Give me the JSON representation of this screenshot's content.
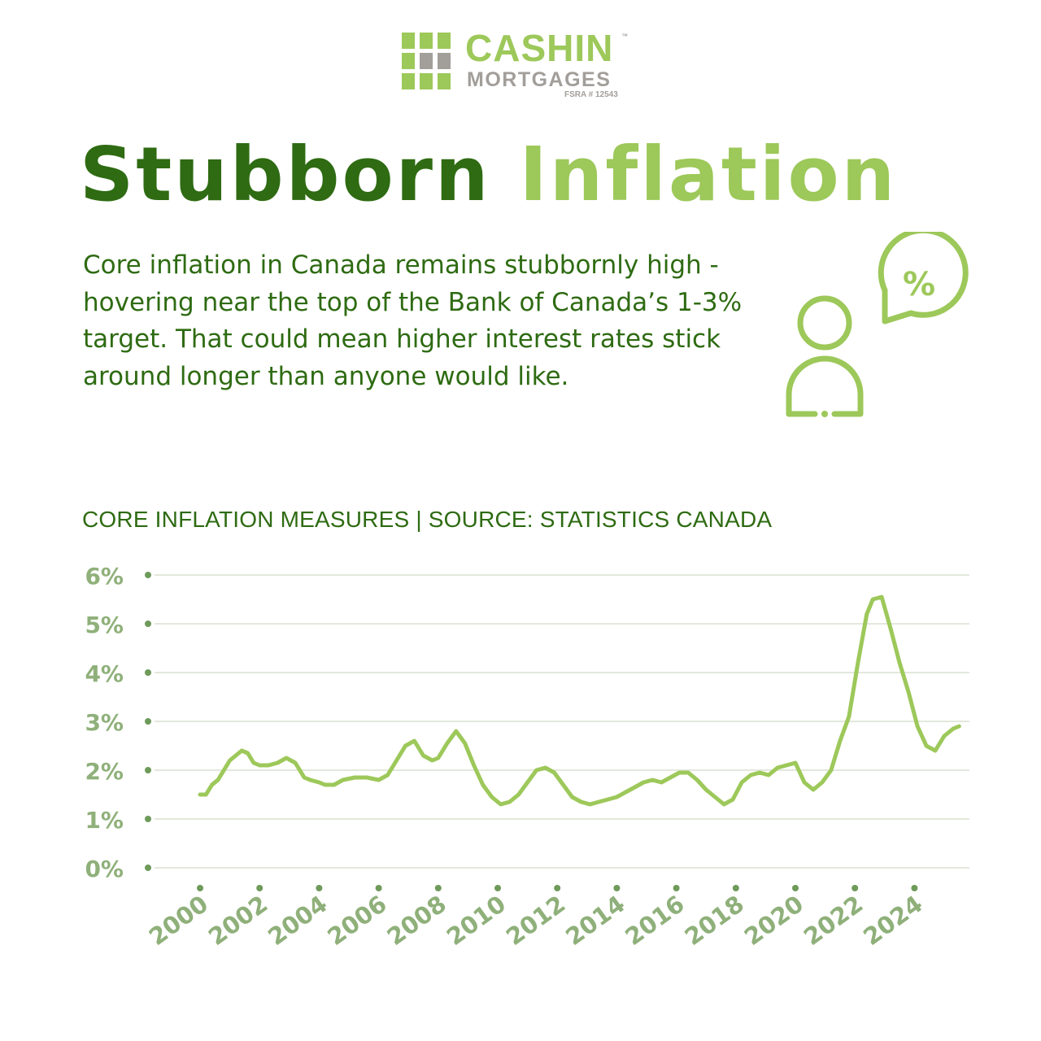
{
  "brand": {
    "name": "CASHIN",
    "trademark": "™",
    "sub": "MORTGAGES",
    "license": "FSRA # 12543"
  },
  "headline": {
    "word1": "Stubborn",
    "word2": "Inflation"
  },
  "description": "Core inflation in Canada remains stubbornly high - hovering near the top of the Bank of Canada’s 1-3% target. That could mean higher interest rates stick around longer than anyone would like.",
  "icons": {
    "illustration": "person-speech-bubble-percent-icon",
    "logo": "grid-squares-icon",
    "percent_symbol": "%"
  },
  "colors": {
    "dark_green": "#2e6b12",
    "light_green": "#9dc85a",
    "axis_green": "#8fb07a",
    "dot_green": "#6e9a5a",
    "grid": "#e3e8dc"
  },
  "chart_data": {
    "type": "line",
    "title": "CORE INFLATION MEASURES | SOURCE: STATISTICS CANADA",
    "xlabel": "",
    "ylabel": "",
    "ylim": [
      0,
      6
    ],
    "xlim": [
      2000,
      2025.7
    ],
    "grid": true,
    "y_ticks": [
      "0%",
      "1%",
      "2%",
      "3%",
      "4%",
      "5%",
      "6%"
    ],
    "x_ticks": [
      "2000",
      "2002",
      "2004",
      "2006",
      "2008",
      "2010",
      "2012",
      "2014",
      "2016",
      "2018",
      "2020",
      "2022",
      "2024"
    ],
    "series": [
      {
        "x": [
          2000,
          2000.2,
          2000.4,
          2000.6,
          2000.8,
          2001,
          2001.2,
          2001.4,
          2001.6,
          2001.8,
          2002,
          2002.3,
          2002.6,
          2002.9,
          2003.2,
          2003.5,
          2003.7,
          2004,
          2004.2,
          2004.5,
          2004.8,
          2005.2,
          2005.6,
          2006,
          2006.3,
          2006.6,
          2006.9,
          2007.2,
          2007.5,
          2007.8,
          2008,
          2008.3,
          2008.6,
          2008.9,
          2009.2,
          2009.5,
          2009.8,
          2010.1,
          2010.4,
          2010.7,
          2011,
          2011.3,
          2011.6,
          2011.9,
          2012.2,
          2012.5,
          2012.8,
          2013.1,
          2013.4,
          2013.7,
          2014,
          2014.3,
          2014.6,
          2014.9,
          2015.2,
          2015.5,
          2015.8,
          2016.1,
          2016.4,
          2016.7,
          2017,
          2017.3,
          2017.6,
          2017.9,
          2018.2,
          2018.5,
          2018.8,
          2019.1,
          2019.4,
          2019.7,
          2020,
          2020.3,
          2020.6,
          2020.9,
          2021.2,
          2021.5,
          2021.8,
          2022.1,
          2022.4,
          2022.6,
          2022.9,
          2023.2,
          2023.5,
          2023.8,
          2024.1,
          2024.4,
          2024.7,
          2025,
          2025.3,
          2025.5
        ],
        "values": [
          1.5,
          1.5,
          1.7,
          1.8,
          2.0,
          2.2,
          2.3,
          2.4,
          2.35,
          2.15,
          2.1,
          2.1,
          2.15,
          2.25,
          2.15,
          1.85,
          1.8,
          1.75,
          1.7,
          1.7,
          1.8,
          1.85,
          1.85,
          1.8,
          1.9,
          2.2,
          2.5,
          2.6,
          2.3,
          2.2,
          2.25,
          2.55,
          2.8,
          2.55,
          2.1,
          1.7,
          1.45,
          1.3,
          1.35,
          1.5,
          1.75,
          2.0,
          2.05,
          1.95,
          1.7,
          1.45,
          1.35,
          1.3,
          1.35,
          1.4,
          1.45,
          1.55,
          1.65,
          1.75,
          1.8,
          1.75,
          1.85,
          1.95,
          1.95,
          1.8,
          1.6,
          1.45,
          1.3,
          1.4,
          1.75,
          1.9,
          1.95,
          1.9,
          2.05,
          2.1,
          2.15,
          1.75,
          1.6,
          1.75,
          2.0,
          2.6,
          3.1,
          4.2,
          5.2,
          5.5,
          5.55,
          4.9,
          4.2,
          3.6,
          2.9,
          2.5,
          2.4,
          2.7,
          2.85,
          2.9
        ]
      }
    ]
  }
}
